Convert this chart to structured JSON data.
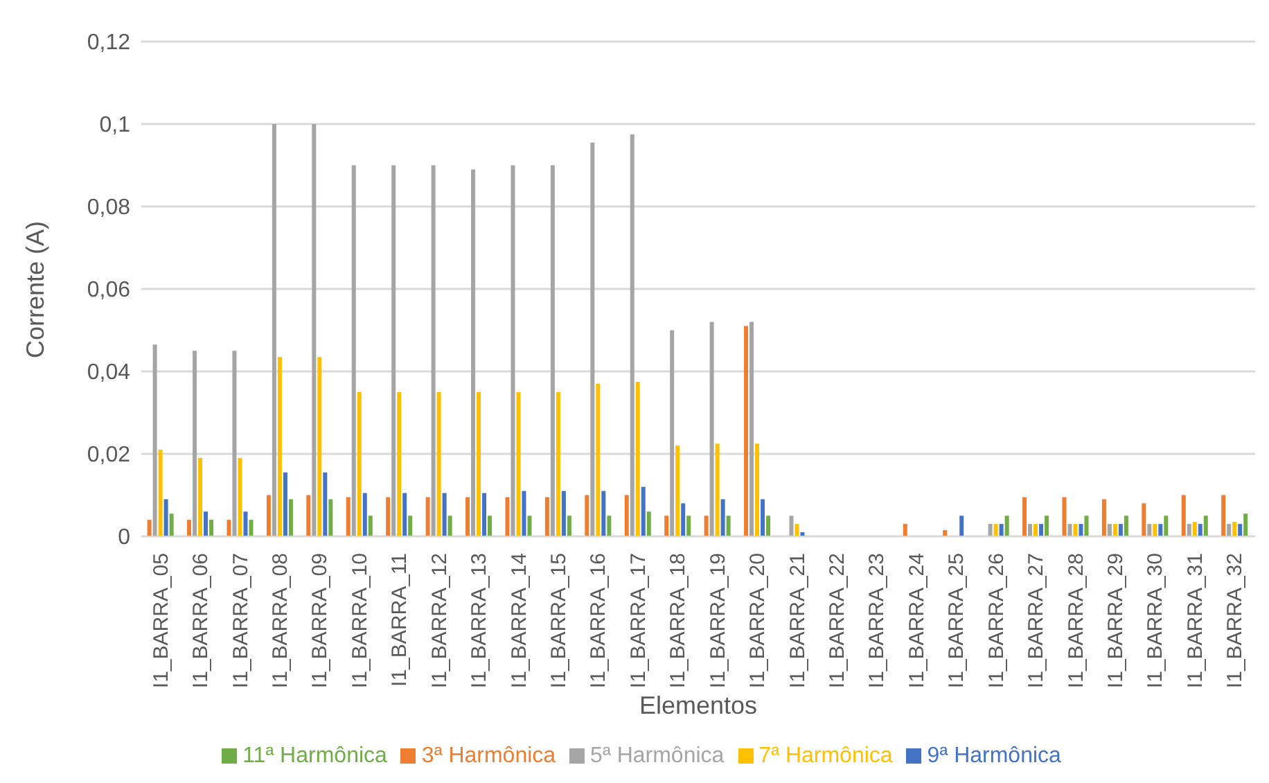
{
  "chart_data": {
    "type": "bar",
    "xlabel": "Elementos",
    "ylabel": "Corrente (A)",
    "categories": [
      "I1_BARRA_05",
      "I1_BARRA_06",
      "I1_BARRA_07",
      "I1_BARRA_08",
      "I1_BARRA_09",
      "I1_BARRA_10",
      "I1_BARRA_11",
      "I1_BARRA_12",
      "I1_BARRA_13",
      "I1_BARRA_14",
      "I1_BARRA_15",
      "I1_BARRA_16",
      "I1_BARRA_17",
      "I1_BARRA_18",
      "I1_BARRA_19",
      "I1_BARRA_20",
      "I1_BARRA_21",
      "I1_BARRA_22",
      "I1_BARRA_23",
      "I1_BARRA_24",
      "I1_BARRA_25",
      "I1_BARRA_26",
      "I1_BARRA_27",
      "I1_BARRA_28",
      "I1_BARRA_29",
      "I1_BARRA_30",
      "I1_BARRA_31",
      "I1_BARRA_32"
    ],
    "series": [
      {
        "name": "3ª Harmônica",
        "color": "#ed7d31",
        "values": [
          0.004,
          0.004,
          0.004,
          0.01,
          0.01,
          0.0095,
          0.0095,
          0.0095,
          0.0095,
          0.0095,
          0.0095,
          0.01,
          0.01,
          0.005,
          0.005,
          0.051,
          0,
          0,
          0,
          0.003,
          0.0015,
          0,
          0.0095,
          0.0095,
          0.009,
          0.008,
          0.01,
          0.01
        ]
      },
      {
        "name": "5ª Harmônica",
        "color": "#a5a5a5",
        "values": [
          0.0465,
          0.045,
          0.045,
          0.1,
          0.1,
          0.09,
          0.09,
          0.09,
          0.089,
          0.09,
          0.09,
          0.0955,
          0.0975,
          0.05,
          0.052,
          0.052,
          0.005,
          0,
          0,
          0,
          0,
          0.003,
          0.003,
          0.003,
          0.003,
          0.003,
          0.003,
          0.003
        ]
      },
      {
        "name": "7ª Harmônica",
        "color": "#ffc000",
        "values": [
          0.021,
          0.019,
          0.019,
          0.0435,
          0.0435,
          0.035,
          0.035,
          0.035,
          0.035,
          0.035,
          0.035,
          0.037,
          0.0375,
          0.022,
          0.0225,
          0.0225,
          0.003,
          0,
          0,
          0,
          0,
          0.003,
          0.003,
          0.003,
          0.003,
          0.003,
          0.0035,
          0.0035
        ]
      },
      {
        "name": "9ª Harmônica",
        "color": "#4472c4",
        "values": [
          0.009,
          0.006,
          0.006,
          0.0155,
          0.0155,
          0.0105,
          0.0105,
          0.0105,
          0.0105,
          0.011,
          0.011,
          0.011,
          0.012,
          0.008,
          0.009,
          0.009,
          0.001,
          0,
          0,
          0,
          0.005,
          0.003,
          0.003,
          0.003,
          0.003,
          0.003,
          0.003,
          0.003
        ]
      },
      {
        "name": "11ª Harmônica",
        "color": "#70ad47",
        "values": [
          0.0055,
          0.004,
          0.004,
          0.009,
          0.009,
          0.005,
          0.005,
          0.005,
          0.005,
          0.005,
          0.005,
          0.005,
          0.006,
          0.005,
          0.005,
          0.005,
          0,
          0,
          0,
          0,
          0,
          0.005,
          0.005,
          0.005,
          0.005,
          0.005,
          0.005,
          0.0055
        ]
      }
    ],
    "ylim": [
      0,
      0.12
    ],
    "yticks": [
      0,
      {
        "value": 0.02,
        "label": "0,02"
      },
      {
        "value": 0.04,
        "label": "0,04"
      },
      {
        "value": 0.06,
        "label": "0,06"
      },
      {
        "value": 0.08,
        "label": "0,08"
      },
      {
        "value": 0.1,
        "label": "0,1"
      },
      {
        "value": 0.12,
        "label": "0,12"
      }
    ],
    "grid": "y",
    "legend": "bottom"
  }
}
